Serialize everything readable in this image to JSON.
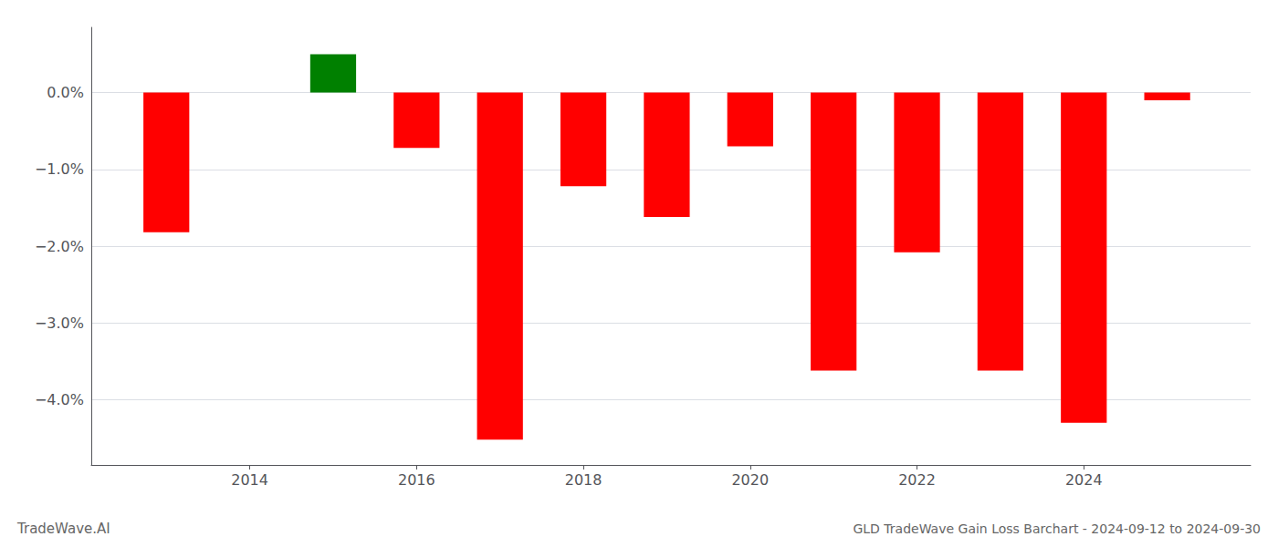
{
  "chart_data": {
    "type": "bar",
    "title": "GLD TradeWave Gain Loss Barchart - 2024-09-12 to 2024-09-30",
    "annotations": [
      "TradeWave.AI"
    ],
    "x": [
      2013,
      2015,
      2016,
      2017,
      2018,
      2019,
      2020,
      2021,
      2022,
      2023,
      2024,
      2025
    ],
    "values": [
      -1.82,
      0.5,
      -0.72,
      -4.52,
      -1.22,
      -1.62,
      -0.7,
      -3.62,
      -2.08,
      -3.62,
      -4.3,
      -0.1
    ],
    "colors": [
      "red",
      "green",
      "red",
      "red",
      "red",
      "red",
      "red",
      "red",
      "red",
      "red",
      "red",
      "red"
    ],
    "xlim": [
      2012.1,
      2026.0
    ],
    "xticks": [
      2014,
      2016,
      2018,
      2020,
      2022,
      2024
    ],
    "ylim": [
      -4.85,
      0.85
    ],
    "yticks": [
      {
        "value": -4,
        "label": "−4.0%"
      },
      {
        "value": -3,
        "label": "−3.0%"
      },
      {
        "value": -2,
        "label": "−2.0%"
      },
      {
        "value": -1,
        "label": "−1.0%"
      },
      {
        "value": 0,
        "label": "0.0%"
      }
    ],
    "grid": true
  }
}
